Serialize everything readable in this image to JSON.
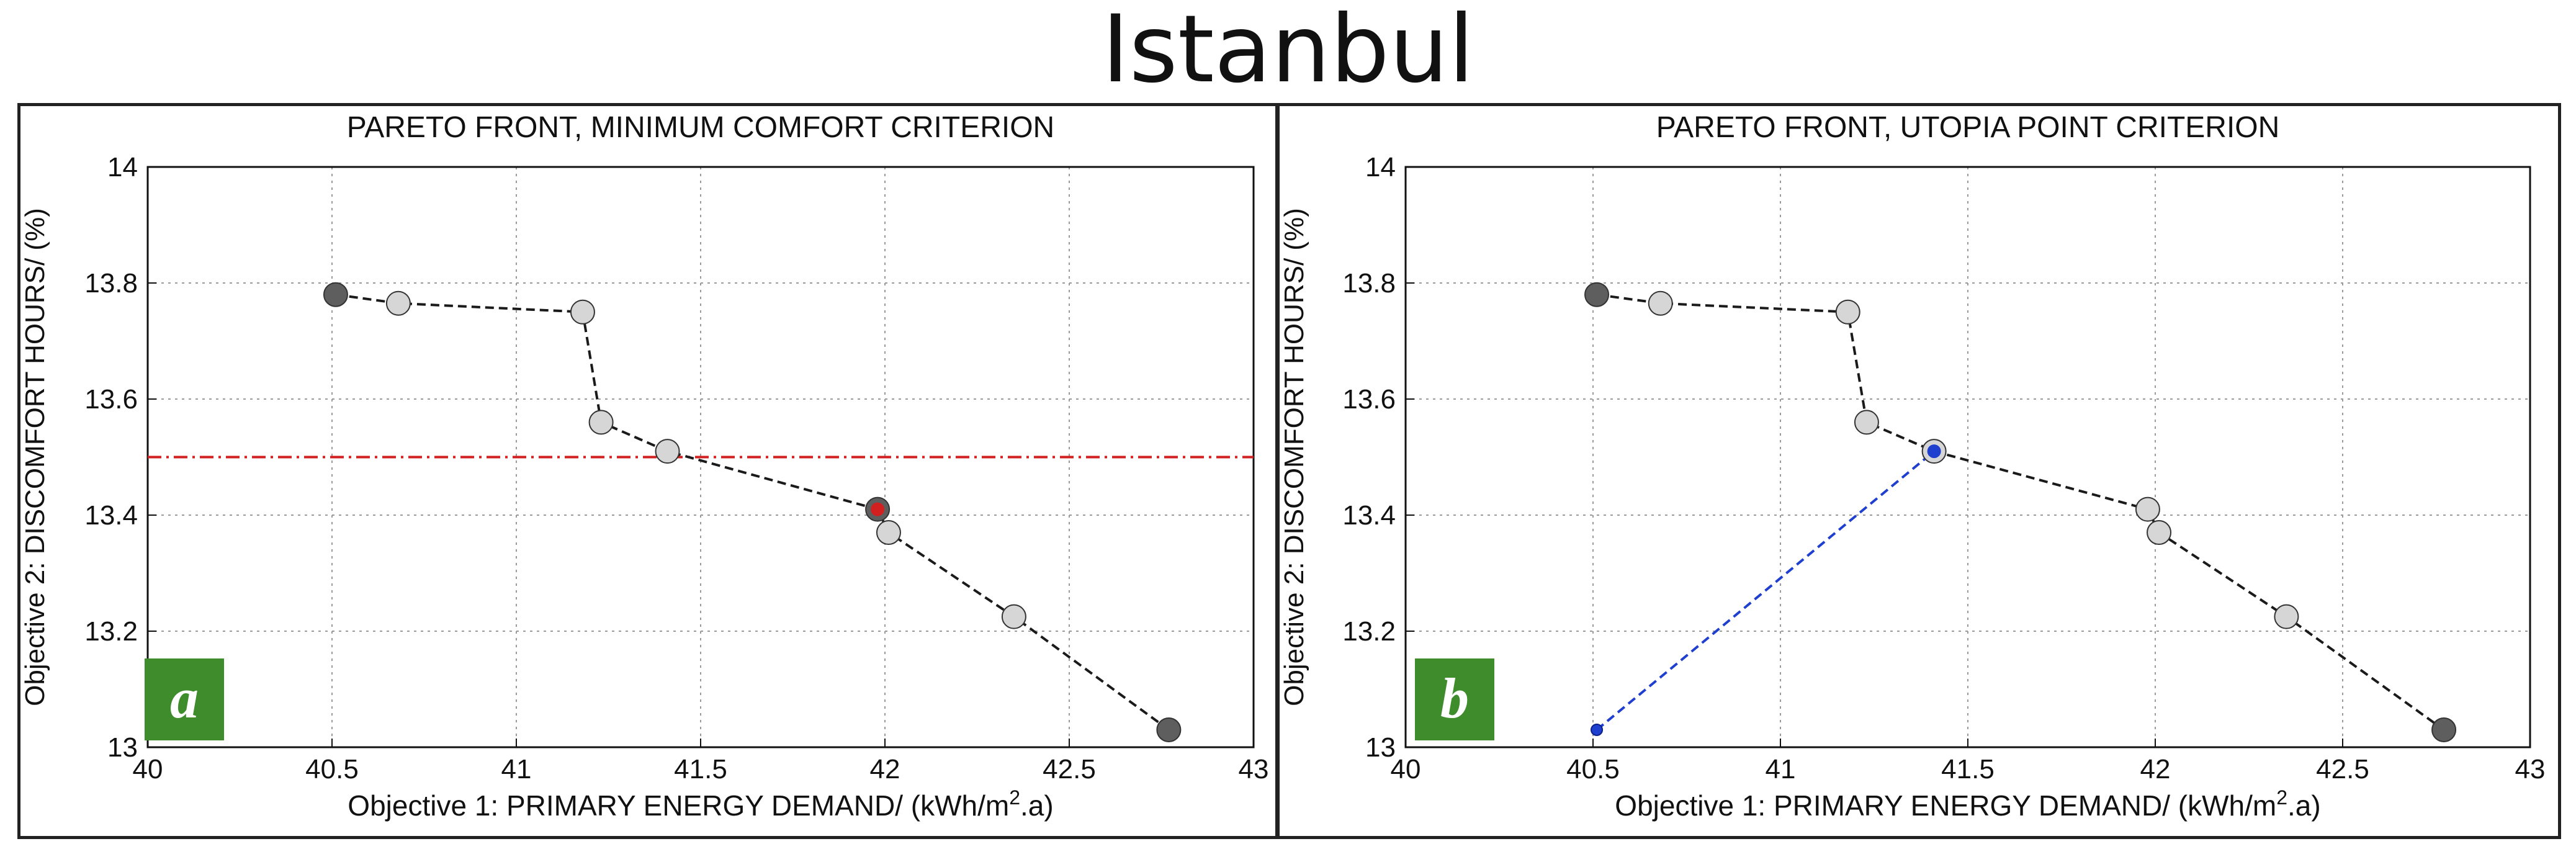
{
  "title": "Istanbul",
  "colors": {
    "line": "#1a1a1a",
    "point_light": "#d6d6d6",
    "point_dark": "#5e5e5e",
    "threshold": "#d21f1f",
    "highlight_red": "#d21f1f",
    "utopia_blue": "#1f3fcf",
    "badge_green": "#3f8c2c",
    "grid": "#9a9a9a"
  },
  "chart_data": [
    {
      "type": "line",
      "badge": "a",
      "title": "PARETO FRONT, MINIMUM COMFORT CRITERION",
      "xlabel_prefix": "Objective 1: PRIMARY ENERGY DEMAND/ (kWh/m",
      "xlabel_sup": "2",
      "xlabel_suffix": ".a)",
      "ylabel": "Objective 2: DISCOMFORT HOURS/ (%)",
      "xlim": [
        40,
        43
      ],
      "ylim": [
        13,
        14
      ],
      "xticks": [
        "40",
        "40.5",
        "41",
        "41.5",
        "42",
        "42.5",
        "43"
      ],
      "yticks": [
        "13",
        "13.2",
        "13.4",
        "13.6",
        "13.8",
        "14"
      ],
      "grid": true,
      "series": [
        {
          "style": "dashed",
          "x": [
            40.51,
            40.68,
            41.18,
            41.23,
            41.41,
            41.98,
            42.01,
            42.35,
            42.77
          ],
          "y": [
            13.78,
            13.765,
            13.75,
            13.56,
            13.51,
            13.41,
            13.37,
            13.225,
            13.03
          ],
          "point_styles": [
            "dark",
            "light",
            "light",
            "light",
            "light",
            "red",
            "light",
            "light",
            "dark"
          ]
        }
      ],
      "threshold_y": 13.5
    },
    {
      "type": "line",
      "badge": "b",
      "title": "PARETO FRONT, UTOPIA POINT CRITERION",
      "xlabel_prefix": "Objective 1: PRIMARY ENERGY DEMAND/ (kWh/m",
      "xlabel_sup": "2",
      "xlabel_suffix": ".a)",
      "ylabel": "Objective 2: DISCOMFORT HOURS/ (%)",
      "xlim": [
        40,
        43
      ],
      "ylim": [
        13,
        14
      ],
      "xticks": [
        "40",
        "40.5",
        "41",
        "41.5",
        "42",
        "42.5",
        "43"
      ],
      "yticks": [
        "13",
        "13.2",
        "13.4",
        "13.6",
        "13.8",
        "14"
      ],
      "grid": true,
      "series": [
        {
          "style": "dashed",
          "x": [
            40.51,
            40.68,
            41.18,
            41.23,
            41.41,
            41.98,
            42.01,
            42.35,
            42.77
          ],
          "y": [
            13.78,
            13.765,
            13.75,
            13.56,
            13.51,
            13.41,
            13.37,
            13.225,
            13.03
          ],
          "point_styles": [
            "dark",
            "light",
            "light",
            "light",
            "blue",
            "light",
            "light",
            "light",
            "dark"
          ]
        }
      ],
      "utopia_line": {
        "x": [
          40.51,
          41.41
        ],
        "y": [
          13.03,
          13.51
        ]
      }
    }
  ]
}
